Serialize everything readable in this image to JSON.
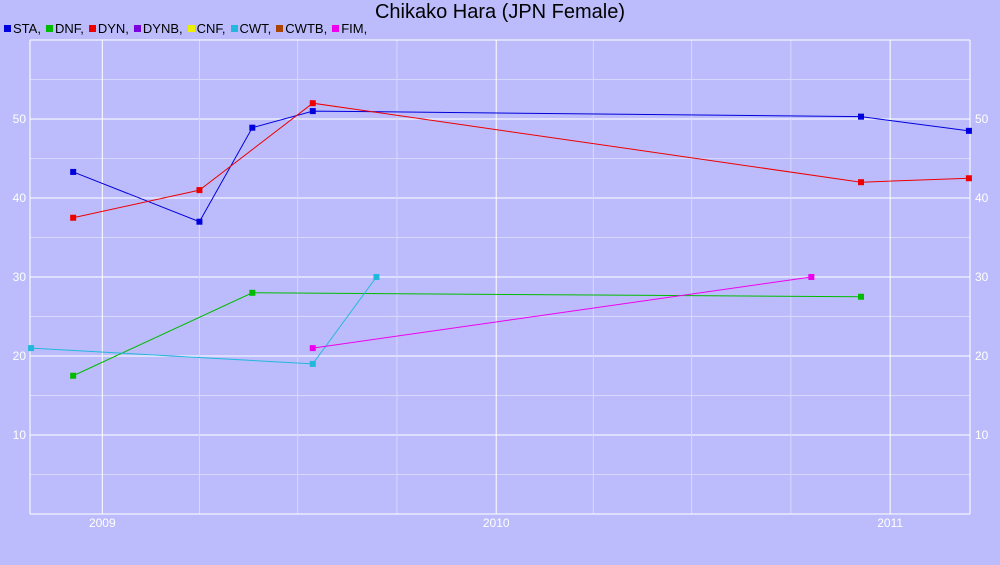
{
  "chart_data": {
    "type": "line",
    "title": "Chikako Hara (JPN Female)",
    "xlabel": "",
    "ylabel": "",
    "ylim": [
      0,
      60
    ],
    "xlim": [
      "2008-10-26",
      "2011-03-16"
    ],
    "x_tick_labels": [
      "2009",
      "2010",
      "2011"
    ],
    "y_tick_labels": [
      "10",
      "20",
      "30",
      "40",
      "50"
    ],
    "grid": true,
    "legend_position": "top-left",
    "series": [
      {
        "name": "STA,",
        "color": "#0000dd",
        "points": [
          {
            "x": "2008-12-05",
            "y": 43.3
          },
          {
            "x": "2009-04-01",
            "y": 37.0
          },
          {
            "x": "2009-05-20",
            "y": 48.9
          },
          {
            "x": "2009-07-15",
            "y": 51.0
          },
          {
            "x": "2010-12-05",
            "y": 50.3
          },
          {
            "x": "2011-03-15",
            "y": 48.5
          }
        ]
      },
      {
        "name": "DNF,",
        "color": "#00bb00",
        "points": [
          {
            "x": "2008-12-05",
            "y": 17.5
          },
          {
            "x": "2009-05-20",
            "y": 28.0
          },
          {
            "x": "2010-12-05",
            "y": 27.5
          }
        ]
      },
      {
        "name": "DYN,",
        "color": "#ee0000",
        "points": [
          {
            "x": "2008-12-05",
            "y": 37.5
          },
          {
            "x": "2009-04-01",
            "y": 41.0
          },
          {
            "x": "2009-07-15",
            "y": 52.0
          },
          {
            "x": "2010-12-05",
            "y": 42.0
          },
          {
            "x": "2011-03-15",
            "y": 42.5
          }
        ]
      },
      {
        "name": "DYNB,",
        "color": "#7a00dd",
        "points": []
      },
      {
        "name": "CNF,",
        "color": "#eeee00",
        "points": []
      },
      {
        "name": "CWT,",
        "color": "#22b8dd",
        "points": [
          {
            "x": "2008-10-27",
            "y": 21.0
          },
          {
            "x": "2009-07-15",
            "y": 19.0
          },
          {
            "x": "2009-09-12",
            "y": 30.0
          }
        ]
      },
      {
        "name": "CWTB,",
        "color": "#aa4400",
        "points": []
      },
      {
        "name": "FIM,",
        "color": "#ee00ee",
        "points": [
          {
            "x": "2009-07-15",
            "y": 21.0
          },
          {
            "x": "2010-10-20",
            "y": 30.0
          }
        ]
      }
    ]
  }
}
